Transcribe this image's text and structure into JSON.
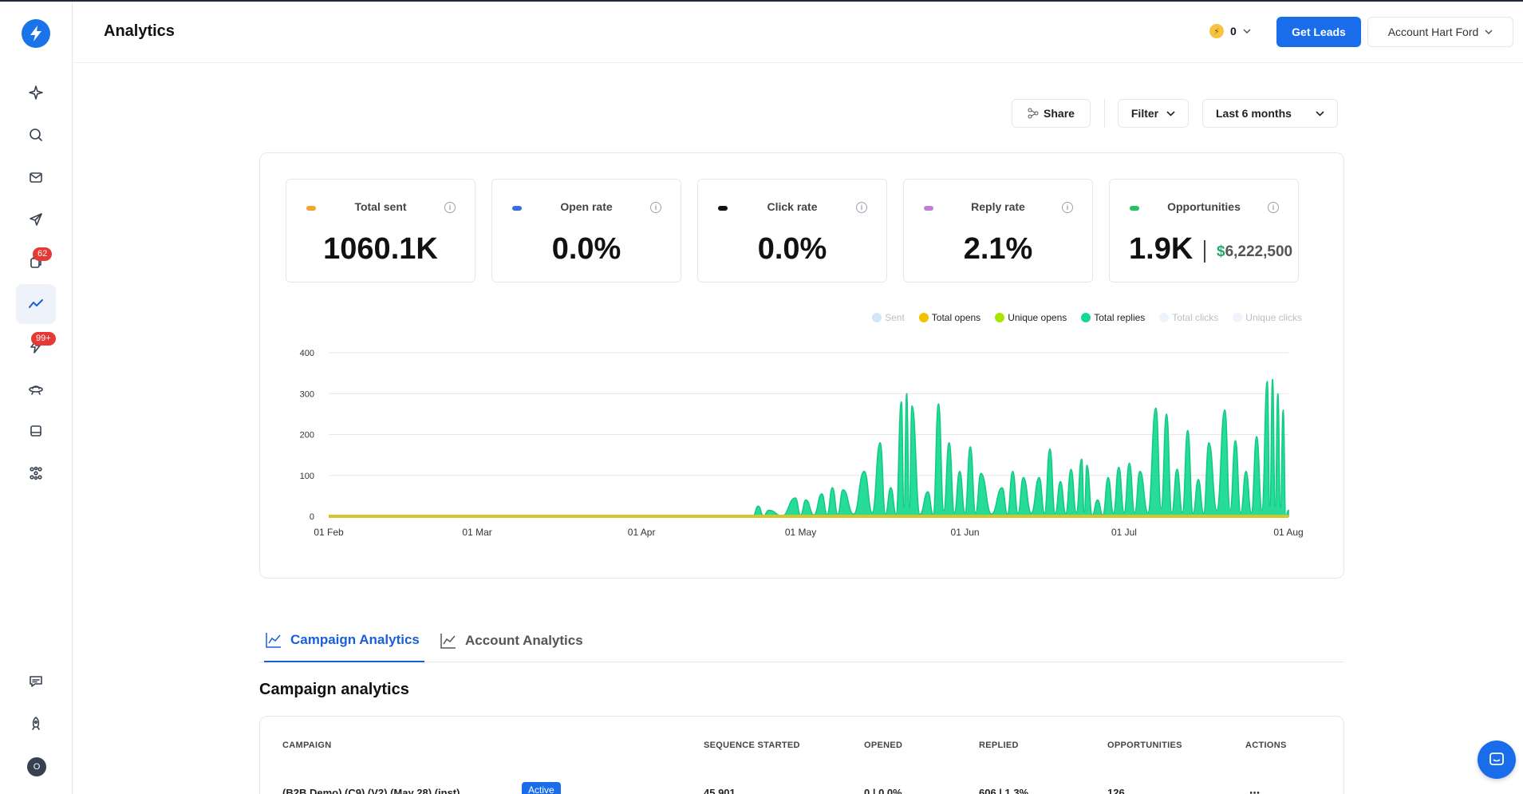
{
  "header": {
    "title": "Analytics",
    "credits": "0",
    "get_leads_label": "Get Leads",
    "account_label": "Account Hart Ford"
  },
  "sidebar": {
    "badges": {
      "campaigns_badge": "62",
      "unibox_badge": "99+"
    },
    "avatar_initial": "O",
    "items": [
      "sparkle-icon",
      "search-icon",
      "mail-icon",
      "send-icon",
      "copy-icon",
      "analytics-icon",
      "bolt-icon",
      "ufo-icon",
      "inbox-icon",
      "apps-icon",
      "message-icon",
      "rocket-icon"
    ]
  },
  "toolbar": {
    "share_label": "Share",
    "filter_label": "Filter",
    "range_label": "Last 6 months"
  },
  "stats": [
    {
      "label": "Total sent",
      "value": "1060.1K",
      "color": "#f0a630"
    },
    {
      "label": "Open rate",
      "value": "0.0%",
      "color": "#3b6fe0"
    },
    {
      "label": "Click rate",
      "value": "0.0%",
      "color": "#111111"
    },
    {
      "label": "Reply rate",
      "value": "2.1%",
      "color": "#c27ed6"
    },
    {
      "label": "Opportunities",
      "value": "1.9K",
      "money_symbol": "$",
      "money": "6,222,500",
      "color": "#22c55e"
    }
  ],
  "legend": [
    {
      "name": "Sent",
      "color": "#cfe6fb",
      "faded": true
    },
    {
      "name": "Total opens",
      "color": "#f5c000",
      "faded": false
    },
    {
      "name": "Unique opens",
      "color": "#a8e600",
      "faded": false
    },
    {
      "name": "Total replies",
      "color": "#14d98f",
      "faded": false
    },
    {
      "name": "Total clicks",
      "color": "#eef4fb",
      "faded": true
    },
    {
      "name": "Unique clicks",
      "color": "#eef4fb",
      "faded": true
    }
  ],
  "chart_data": {
    "type": "area",
    "x_tick_labels": [
      "01 Feb",
      "01 Mar",
      "01 Apr",
      "01 May",
      "01 Jun",
      "01 Jul",
      "01 Aug"
    ],
    "x_tick_days": [
      0,
      28,
      59,
      89,
      120,
      150,
      181
    ],
    "y_ticks": [
      0,
      100,
      200,
      300,
      400
    ],
    "ylim": [
      0,
      400
    ],
    "series": [
      {
        "name": "Total replies",
        "color": "#14d98f",
        "peaks": [
          {
            "day": 81,
            "value": 25
          },
          {
            "day": 83,
            "value": 15
          },
          {
            "day": 88,
            "value": 45
          },
          {
            "day": 90,
            "value": 40
          },
          {
            "day": 93,
            "value": 55
          },
          {
            "day": 95,
            "value": 70
          },
          {
            "day": 97,
            "value": 65
          },
          {
            "day": 101,
            "value": 110
          },
          {
            "day": 104,
            "value": 180
          },
          {
            "day": 106,
            "value": 70
          },
          {
            "day": 108,
            "value": 280
          },
          {
            "day": 109,
            "value": 300
          },
          {
            "day": 110,
            "value": 270
          },
          {
            "day": 113,
            "value": 60
          },
          {
            "day": 115,
            "value": 275
          },
          {
            "day": 117,
            "value": 180
          },
          {
            "day": 119,
            "value": 110
          },
          {
            "day": 121,
            "value": 170
          },
          {
            "day": 123,
            "value": 105
          },
          {
            "day": 127,
            "value": 70
          },
          {
            "day": 129,
            "value": 110
          },
          {
            "day": 131,
            "value": 95
          },
          {
            "day": 134,
            "value": 95
          },
          {
            "day": 136,
            "value": 165
          },
          {
            "day": 138,
            "value": 85
          },
          {
            "day": 140,
            "value": 115
          },
          {
            "day": 142,
            "value": 140
          },
          {
            "day": 143,
            "value": 125
          },
          {
            "day": 145,
            "value": 40
          },
          {
            "day": 147,
            "value": 95
          },
          {
            "day": 149,
            "value": 120
          },
          {
            "day": 151,
            "value": 130
          },
          {
            "day": 153,
            "value": 110
          },
          {
            "day": 156,
            "value": 265
          },
          {
            "day": 158,
            "value": 250
          },
          {
            "day": 160,
            "value": 115
          },
          {
            "day": 162,
            "value": 210
          },
          {
            "day": 164,
            "value": 90
          },
          {
            "day": 166,
            "value": 180
          },
          {
            "day": 169,
            "value": 260
          },
          {
            "day": 171,
            "value": 185
          },
          {
            "day": 173,
            "value": 110
          },
          {
            "day": 175,
            "value": 195
          },
          {
            "day": 177,
            "value": 330
          },
          {
            "day": 178,
            "value": 335
          },
          {
            "day": 179,
            "value": 300
          },
          {
            "day": 180,
            "value": 260
          },
          {
            "day": 181,
            "value": 15
          }
        ]
      },
      {
        "name": "Total opens",
        "color": "#d4c62a",
        "constant_value": 0
      }
    ]
  },
  "tabs": [
    {
      "label": "Campaign Analytics",
      "active": true
    },
    {
      "label": "Account Analytics",
      "active": false
    }
  ],
  "campaign_section": {
    "title": "Campaign analytics",
    "columns": [
      "CAMPAIGN",
      "SEQUENCE STARTED",
      "OPENED",
      "REPLIED",
      "OPPORTUNITIES",
      "ACTIONS"
    ],
    "rows": [
      {
        "campaign": "(B2B Demo) (C9) (V2) (May 28) (inst)",
        "status": "Active",
        "sequence_started": "45,901",
        "opened": "0 | 0.0%",
        "replied": "606 | 1.3%",
        "opportunities": "126"
      }
    ]
  }
}
